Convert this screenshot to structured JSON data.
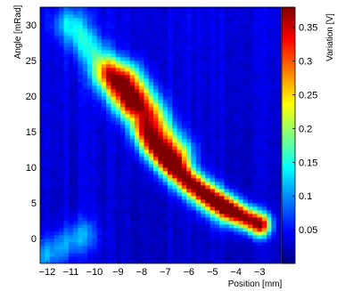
{
  "chart_data": {
    "type": "heatmap",
    "title": "",
    "xlabel": "Position [mm]",
    "ylabel": "Angle [mRad]",
    "colorbar_label": "Variation [V]",
    "xlim": [
      -12.3,
      -2.1
    ],
    "ylim": [
      -3.5,
      32.5
    ],
    "clim": [
      0,
      0.38
    ],
    "x_ticks": [
      -12,
      -11,
      -10,
      -9,
      -8,
      -7,
      -6,
      -5,
      -4,
      -3
    ],
    "x_tick_labels": [
      "−12",
      "−11",
      "−10",
      "−9",
      "−8",
      "−7",
      "−6",
      "−5",
      "−4",
      "−3"
    ],
    "y_ticks": [
      0,
      5,
      10,
      15,
      20,
      25,
      30
    ],
    "y_tick_labels": [
      "0",
      "5",
      "10",
      "15",
      "20",
      "25",
      "30"
    ],
    "colorbar_ticks": [
      0.05,
      0.1,
      0.15,
      0.2,
      0.25,
      0.3,
      0.35
    ],
    "colorbar_tick_labels": [
      "0.05",
      "0.1",
      "0.15",
      "0.2",
      "0.25",
      "0.3",
      "0.35"
    ],
    "colormap": "jet",
    "grid": false,
    "x_step": 0.2,
    "y_step": 0.5,
    "features": [
      {
        "x": [
          -3.0,
          -4.0,
          -5.0,
          -6.0,
          -7.0,
          -8.0
        ],
        "y": [
          2.0,
          3.6,
          5.6,
          8.0,
          11.0,
          15.0
        ],
        "peak": 0.37
      },
      {
        "x": [
          -4.5,
          -5.5,
          -6.5,
          -7.5
        ],
        "y": [
          4.0,
          6.5,
          9.5,
          13.0
        ],
        "peak": 0.12
      },
      {
        "x": [
          -6.5,
          -7.3
        ],
        "y": [
          12.0,
          15.5
        ],
        "peak": 0.2
      },
      {
        "x": [
          -8.0,
          -9.5,
          -11.0
        ],
        "y": [
          17.0,
          24.0,
          30.0
        ],
        "peak": 0.11
      },
      {
        "x": [
          -8.5,
          -9.4
        ],
        "y": [
          19.0,
          23.0
        ],
        "peak": 0.19
      },
      {
        "x": [
          -7.7,
          -8.5
        ],
        "y": [
          18.5,
          22.5
        ],
        "peak": 0.17
      },
      {
        "x": [
          -12.2,
          -10.5
        ],
        "y": [
          -2.5,
          0.5
        ],
        "peak": 0.08
      }
    ]
  }
}
